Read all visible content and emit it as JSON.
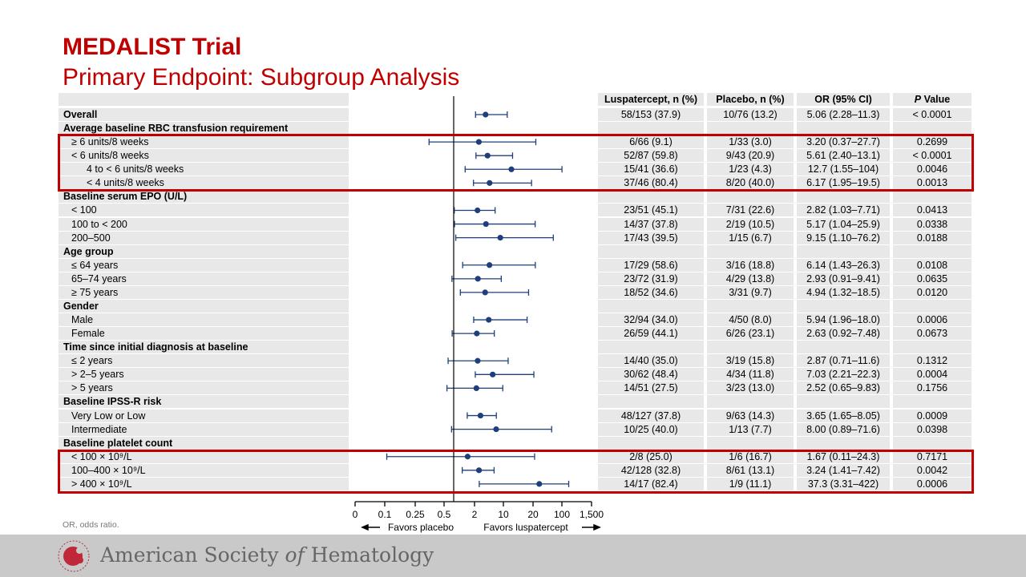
{
  "slide": {
    "title": "MEDALIST Trial",
    "subtitle": "Primary Endpoint: Subgroup Analysis",
    "footnote": "OR, odds ratio.",
    "organization": {
      "pre": "American Society ",
      "of": "of",
      "post": " Hematology"
    },
    "colors": {
      "title": "#c00000",
      "marker": "#1f3f7a",
      "highlight": "#c00000",
      "cell": "#e8e8e8"
    }
  },
  "chart_data": {
    "type": "forest",
    "columns": [
      "Luspatercept, n (%)",
      "Placebo, n (%)",
      "OR (95% CI)",
      "Value"
    ],
    "p_label_italic": "P",
    "x_ticks": [
      "0",
      "0.1",
      "0.25",
      "0.5",
      "2",
      "10",
      "20",
      "100",
      "1,500"
    ],
    "x_tick_values": [
      0,
      0.1,
      0.25,
      0.5,
      2,
      10,
      20,
      100,
      1500
    ],
    "reference_value": 1,
    "favors_left": "Favors placebo",
    "favors_right": "Favors luspatercept",
    "highlighted_groups": [
      "Average baseline RBC transfusion requirement",
      "Baseline platelet count"
    ],
    "rows": [
      {
        "label": "Overall",
        "level": 0,
        "lusp": "58/153 (37.9)",
        "placebo": "10/76 (13.2)",
        "or_ci": "5.06 (2.28–11.3)",
        "p": "< 0.0001",
        "or": 5.06,
        "lo": 2.28,
        "hi": 11.3
      },
      {
        "label": "Average baseline RBC transfusion requirement",
        "level": 0
      },
      {
        "label": "≥ 6 units/8 weeks",
        "level": 1,
        "lusp": "6/66 (9.1)",
        "placebo": "1/33 (3.0)",
        "or_ci": "3.20 (0.37–27.7)",
        "p": "0.2699",
        "or": 3.2,
        "lo": 0.37,
        "hi": 27.7
      },
      {
        "label": "< 6 units/8 weeks",
        "level": 1,
        "lusp": "52/87 (59.8)",
        "placebo": "9/43 (20.9)",
        "or_ci": "5.61 (2.40–13.1)",
        "p": "< 0.0001",
        "or": 5.61,
        "lo": 2.4,
        "hi": 13.1
      },
      {
        "label": "4 to < 6 units/8 weeks",
        "level": 2,
        "lusp": "15/41 (36.6)",
        "placebo": "1/23 (4.3)",
        "or_ci": "12.7 (1.55–104)",
        "p": "0.0046",
        "or": 12.7,
        "lo": 1.55,
        "hi": 104
      },
      {
        "label": "< 4 units/8 weeks",
        "level": 2,
        "lusp": "37/46 (80.4)",
        "placebo": "8/20 (40.0)",
        "or_ci": "6.17 (1.95–19.5)",
        "p": "0.0013",
        "or": 6.17,
        "lo": 1.95,
        "hi": 19.5
      },
      {
        "label": "Baseline serum EPO (U/L)",
        "level": 0
      },
      {
        "label": "< 100",
        "level": 1,
        "lusp": "23/51 (45.1)",
        "placebo": "7/31 (22.6)",
        "or_ci": "2.82 (1.03–7.71)",
        "p": "0.0413",
        "or": 2.82,
        "lo": 1.03,
        "hi": 7.71
      },
      {
        "label": "100 to < 200",
        "level": 1,
        "lusp": "14/37 (37.8)",
        "placebo": "2/19 (10.5)",
        "or_ci": "5.17 (1.04–25.9)",
        "p": "0.0338",
        "or": 5.17,
        "lo": 1.04,
        "hi": 25.9
      },
      {
        "label": "200–500",
        "level": 1,
        "lusp": "17/43 (39.5)",
        "placebo": "1/15 (6.7)",
        "or_ci": "9.15 (1.10–76.2)",
        "p": "0.0188",
        "or": 9.15,
        "lo": 1.1,
        "hi": 76.2
      },
      {
        "label": "Age group",
        "level": 0
      },
      {
        "label": "≤ 64 years",
        "level": 1,
        "lusp": "17/29 (58.6)",
        "placebo": "3/16 (18.8)",
        "or_ci": "6.14 (1.43–26.3)",
        "p": "0.0108",
        "or": 6.14,
        "lo": 1.43,
        "hi": 26.3
      },
      {
        "label": "65–74 years",
        "level": 1,
        "lusp": "23/72 (31.9)",
        "placebo": "4/29 (13.8)",
        "or_ci": "2.93 (0.91–9.41)",
        "p": "0.0635",
        "or": 2.93,
        "lo": 0.91,
        "hi": 9.41
      },
      {
        "label": "≥ 75 years",
        "level": 1,
        "lusp": "18/52 (34.6)",
        "placebo": "3/31 (9.7)",
        "or_ci": "4.94 (1.32–18.5)",
        "p": "0.0120",
        "or": 4.94,
        "lo": 1.32,
        "hi": 18.5
      },
      {
        "label": "Gender",
        "level": 0
      },
      {
        "label": "Male",
        "level": 1,
        "lusp": "32/94 (34.0)",
        "placebo": "4/50 (8.0)",
        "or_ci": "5.94 (1.96–18.0)",
        "p": "0.0006",
        "or": 5.94,
        "lo": 1.96,
        "hi": 18.0
      },
      {
        "label": "Female",
        "level": 1,
        "lusp": "26/59 (44.1)",
        "placebo": "6/26 (23.1)",
        "or_ci": "2.63 (0.92–7.48)",
        "p": "0.0673",
        "or": 2.63,
        "lo": 0.92,
        "hi": 7.48
      },
      {
        "label": "Time since initial diagnosis at baseline",
        "level": 0
      },
      {
        "label": "≤ 2 years",
        "level": 1,
        "lusp": "14/40 (35.0)",
        "placebo": "3/19 (15.8)",
        "or_ci": "2.87 (0.71–11.6)",
        "p": "0.1312",
        "or": 2.87,
        "lo": 0.71,
        "hi": 11.6
      },
      {
        "label": "> 2–5 years",
        "level": 1,
        "lusp": "30/62 (48.4)",
        "placebo": "4/34 (11.8)",
        "or_ci": "7.03 (2.21–22.3)",
        "p": "0.0004",
        "or": 7.03,
        "lo": 2.21,
        "hi": 22.3
      },
      {
        "label": "> 5 years",
        "level": 1,
        "lusp": "14/51 (27.5)",
        "placebo": "3/23 (13.0)",
        "or_ci": "2.52 (0.65–9.83)",
        "p": "0.1756",
        "or": 2.52,
        "lo": 0.65,
        "hi": 9.83
      },
      {
        "label": "Baseline IPSS-R risk",
        "level": 0
      },
      {
        "label": "Very Low or Low",
        "level": 1,
        "lusp": "48/127 (37.8)",
        "placebo": "9/63 (14.3)",
        "or_ci": "3.65 (1.65–8.05)",
        "p": "0.0009",
        "or": 3.65,
        "lo": 1.65,
        "hi": 8.05
      },
      {
        "label": "Intermediate",
        "level": 1,
        "lusp": "10/25 (40.0)",
        "placebo": "1/13 (7.7)",
        "or_ci": "8.00 (0.89–71.6)",
        "p": "0.0398",
        "or": 8.0,
        "lo": 0.89,
        "hi": 71.6
      },
      {
        "label": "Baseline platelet count",
        "level": 0
      },
      {
        "label": "< 100 × 10⁹/L",
        "level": 1,
        "lusp": "2/8 (25.0)",
        "placebo": "1/6 (16.7)",
        "or_ci": "1.67 (0.11–24.3)",
        "p": "0.7171",
        "or": 1.67,
        "lo": 0.11,
        "hi": 24.3
      },
      {
        "label": "100–400 × 10⁹/L",
        "level": 1,
        "lusp": "42/128 (32.8)",
        "placebo": "8/61 (13.1)",
        "or_ci": "3.24 (1.41–7.42)",
        "p": "0.0042",
        "or": 3.24,
        "lo": 1.41,
        "hi": 7.42
      },
      {
        "label": "> 400 × 10⁹/L",
        "level": 1,
        "lusp": "14/17 (82.4)",
        "placebo": "1/9 (11.1)",
        "or_ci": "37.3 (3.31–422)",
        "p": "0.0006",
        "or": 37.3,
        "lo": 3.31,
        "hi": 422
      }
    ]
  }
}
